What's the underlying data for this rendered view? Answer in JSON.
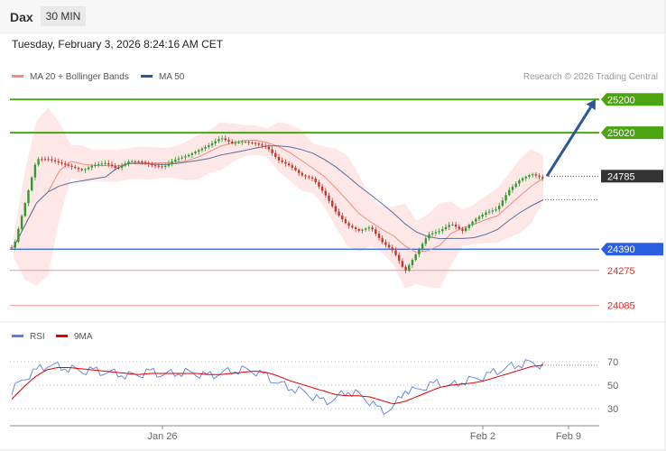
{
  "header": {
    "symbol": "Dax",
    "timeframe": "30 MIN"
  },
  "datetime": "Tuesday, February 3, 2026 8:24:16 AM CET",
  "credit": "Research © 2026 Trading Central",
  "legend_main": [
    {
      "label": "MA 20 + Bollinger Bands",
      "color": "#f28b82"
    },
    {
      "label": "MA 50",
      "color": "#2b5797"
    }
  ],
  "legend_rsi": [
    {
      "label": "RSI",
      "color": "#5b7fe0"
    },
    {
      "label": "9MA",
      "color": "#e00000"
    }
  ],
  "colors": {
    "resistance": "#4aa511",
    "support": "#2b5ee0",
    "support_light": "#f29393",
    "current": "#333333",
    "arrow": "#2b5797",
    "candle_up": "#2e9b2e",
    "candle_down": "#c0392b",
    "bollinger_fill": "#fde3e3"
  },
  "chart_data": [
    {
      "type": "candlestick",
      "title": "Dax 30 MIN",
      "ylim": [
        24030,
        25260
      ],
      "x_labels": [
        "Jan 26",
        "Feb 2",
        "Feb 9"
      ],
      "levels": [
        {
          "value": 25200,
          "label": "25200",
          "kind": "resistance"
        },
        {
          "value": 25020,
          "label": "25020",
          "kind": "resistance"
        },
        {
          "value": 24785,
          "label": "24785",
          "kind": "current"
        },
        {
          "value": 24390,
          "label": "24390",
          "kind": "support"
        },
        {
          "value": 24275,
          "label": "24275",
          "kind": "support_light"
        },
        {
          "value": 24085,
          "label": "24085",
          "kind": "support_light"
        }
      ],
      "close_path": [
        24400,
        24640,
        24880,
        24880,
        24860,
        24840,
        24820,
        24850,
        24860,
        24830,
        24870,
        24870,
        24850,
        24840,
        24880,
        24900,
        24930,
        24960,
        25000,
        24970,
        24980,
        24970,
        24950,
        24880,
        24850,
        24800,
        24780,
        24700,
        24600,
        24530,
        24500,
        24520,
        24440,
        24390,
        24280,
        24380,
        24480,
        24500,
        24540,
        24500,
        24560,
        24600,
        24620,
        24720,
        24780,
        24810,
        24785
      ],
      "forecast": {
        "from": 24785,
        "to": 25200
      }
    },
    {
      "type": "line",
      "title": "RSI",
      "ylim": [
        20,
        80
      ],
      "y_ticks": [
        70,
        50,
        30
      ],
      "series": [
        {
          "name": "RSI",
          "values": [
            45,
            55,
            62,
            67,
            66,
            64,
            62,
            63,
            61,
            60,
            58,
            59,
            62,
            59,
            60,
            61,
            60,
            58,
            60,
            62,
            63,
            62,
            58,
            52,
            48,
            45,
            41,
            36,
            38,
            45,
            42,
            36,
            28,
            30,
            46,
            45,
            50,
            52,
            49,
            53,
            55,
            58,
            62,
            65,
            68,
            69,
            67
          ]
        },
        {
          "name": "9MA",
          "values": [
            38,
            48,
            57,
            63,
            65,
            65,
            64,
            63,
            62,
            61,
            60,
            59,
            60,
            60,
            60,
            60,
            60,
            59,
            59,
            60,
            61,
            62,
            61,
            58,
            54,
            51,
            48,
            45,
            42,
            41,
            41,
            40,
            37,
            34,
            36,
            40,
            44,
            48,
            50,
            51,
            52,
            54,
            57,
            60,
            63,
            66,
            67
          ]
        }
      ]
    }
  ]
}
